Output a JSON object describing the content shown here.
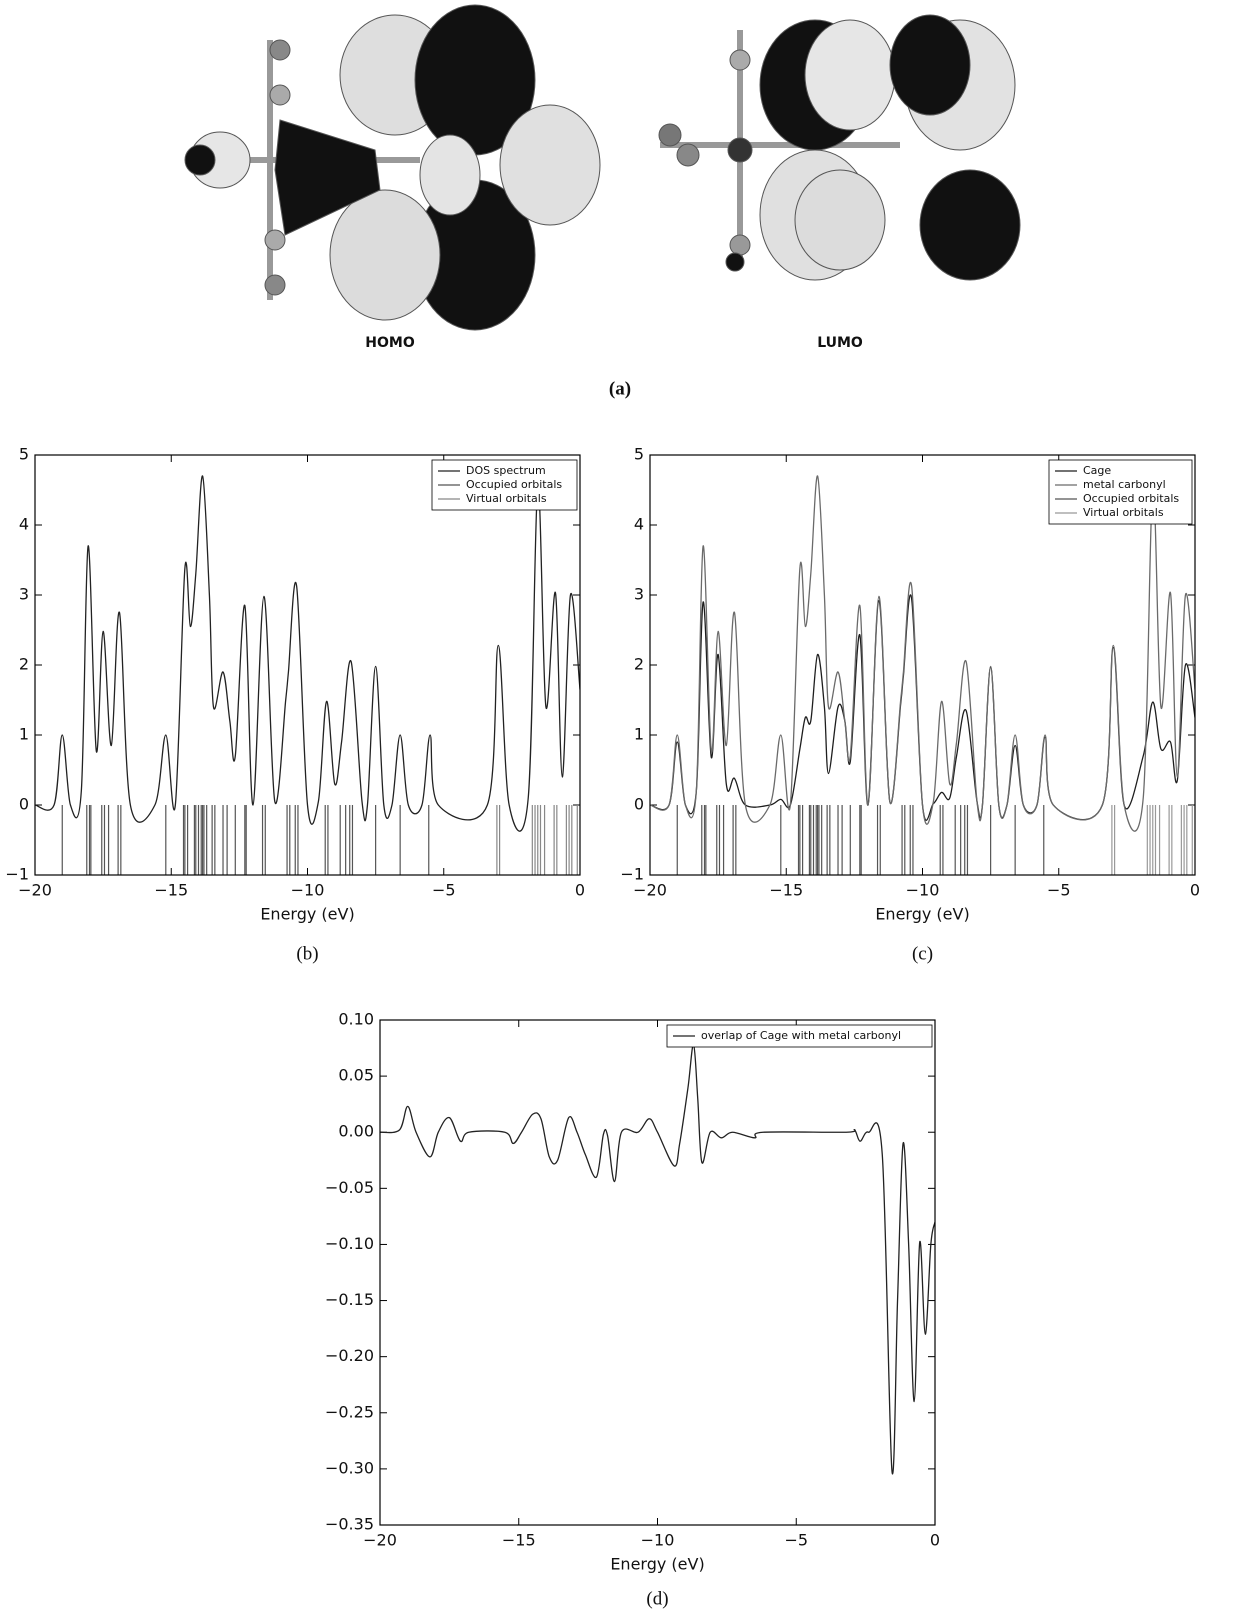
{
  "panel_a": {
    "homo_label": "HOMO",
    "lumo_label": "LUMO",
    "caption": "(a)"
  },
  "chart_data": [
    {
      "type": "line",
      "caption": "(b)",
      "x_label": "Energy (eV)",
      "legend": "upper right",
      "xlim": [
        -20,
        0
      ],
      "ylim": [
        -1,
        5
      ],
      "xticks": [
        {
          "value": -20,
          "label": "−20"
        },
        {
          "value": -15,
          "label": "−15"
        },
        {
          "value": -10,
          "label": "−10"
        },
        {
          "value": -5,
          "label": "−5"
        },
        0
      ],
      "yticks": [
        {
          "value": -1,
          "label": "−1"
        },
        0,
        1,
        2,
        3,
        4,
        5
      ],
      "series": [
        {
          "name": "DOS spectrum",
          "color": "#222222",
          "x": [
            -20,
            -19.3,
            -19.0,
            -18.7,
            -18.3,
            -18.05,
            -17.75,
            -17.5,
            -17.2,
            -16.9,
            -16.5,
            -15.6,
            -15.2,
            -14.85,
            -14.5,
            -14.3,
            -14.1,
            -13.85,
            -13.6,
            -13.45,
            -13.1,
            -12.85,
            -12.65,
            -12.3,
            -12.0,
            -11.6,
            -11.2,
            -10.8,
            -10.7,
            -10.4,
            -10.0,
            -9.6,
            -9.3,
            -9.0,
            -8.75,
            -8.4,
            -8.0,
            -7.8,
            -7.5,
            -7.2,
            -6.9,
            -6.6,
            -6.3,
            -5.8,
            -5.5,
            -5.2,
            -3.4,
            -3.0,
            -2.6,
            -1.9,
            -1.55,
            -1.25,
            -0.9,
            -0.65,
            -0.35,
            0
          ],
          "values": [
            0,
            0,
            1.0,
            0,
            0.2,
            3.7,
            0.77,
            2.48,
            0.85,
            2.75,
            0,
            0,
            1.0,
            0,
            3.38,
            2.55,
            3.3,
            4.7,
            3.0,
            1.4,
            1.9,
            1.2,
            0.7,
            2.85,
            0,
            2.98,
            0.05,
            1.5,
            1.9,
            3.13,
            0,
            0.05,
            1.48,
            0.3,
            0.9,
            2.05,
            0.05,
            0,
            1.98,
            0,
            0,
            1.0,
            0,
            0,
            1.0,
            0,
            0,
            2.28,
            0,
            0.1,
            4.55,
            1.4,
            3.03,
            0.4,
            3.0,
            1.65
          ]
        },
        {
          "name": "Occupied orbitals",
          "color": "#555555",
          "kind": "stick",
          "x": [
            -19.0,
            -18.1,
            -18.0,
            -17.95,
            -17.55,
            -17.45,
            -17.3,
            -16.95,
            -16.85,
            -15.2,
            -14.55,
            -14.5,
            -14.4,
            -14.15,
            -14.1,
            -14.0,
            -13.9,
            -13.85,
            -13.8,
            -13.7,
            -13.5,
            -13.4,
            -13.1,
            -12.95,
            -12.65,
            -12.3,
            -12.25,
            -11.65,
            -11.55,
            -10.75,
            -10.65,
            -10.45,
            -10.35,
            -9.35,
            -9.25,
            -8.8,
            -8.6,
            -8.45,
            -8.35,
            -7.5,
            -6.6,
            -5.55
          ]
        },
        {
          "name": "Virtual orbitals",
          "color": "#888888",
          "kind": "stick",
          "x": [
            -3.05,
            -2.95,
            -1.75,
            -1.65,
            -1.55,
            -1.45,
            -1.3,
            -0.95,
            -0.85,
            -0.5,
            -0.4,
            -0.3,
            -0.1
          ]
        }
      ]
    },
    {
      "type": "line",
      "caption": "(c)",
      "x_label": "Energy (eV)",
      "legend": "upper right",
      "xlim": [
        -20,
        0
      ],
      "ylim": [
        -1,
        5
      ],
      "xticks": [
        {
          "value": -20,
          "label": "−20"
        },
        {
          "value": -15,
          "label": "−15"
        },
        {
          "value": -10,
          "label": "−10"
        },
        {
          "value": -5,
          "label": "−5"
        },
        0
      ],
      "yticks": [
        {
          "value": -1,
          "label": "−1"
        },
        0,
        1,
        2,
        3,
        4,
        5
      ],
      "series": [
        {
          "name": "Cage",
          "color": "#1e1e1e",
          "x": [
            -20,
            -19.3,
            -19.0,
            -18.7,
            -18.3,
            -18.05,
            -17.75,
            -17.5,
            -17.2,
            -16.9,
            -16.5,
            -15.6,
            -15.2,
            -14.85,
            -14.5,
            -14.3,
            -14.1,
            -13.85,
            -13.6,
            -13.45,
            -13.1,
            -12.85,
            -12.65,
            -12.3,
            -12.0,
            -11.6,
            -11.2,
            -10.8,
            -10.7,
            -10.4,
            -10.0,
            -9.6,
            -9.3,
            -9.0,
            -8.75,
            -8.4,
            -8.0,
            -7.8,
            -7.5,
            -7.2,
            -6.9,
            -6.6,
            -6.3,
            -5.8,
            -5.5,
            -5.2,
            -3.4,
            -3.0,
            -2.6,
            -1.9,
            -1.55,
            -1.25,
            -0.9,
            -0.65,
            -0.35,
            0
          ],
          "values": [
            0,
            0,
            0.9,
            0,
            0.2,
            2.9,
            0.68,
            2.15,
            0.3,
            0.38,
            0,
            0,
            0.08,
            0,
            0.8,
            1.25,
            1.2,
            2.15,
            1.4,
            0.45,
            1.4,
            1.2,
            0.62,
            2.43,
            0,
            2.92,
            0.05,
            1.45,
            1.85,
            2.95,
            0,
            0.02,
            0.18,
            0.1,
            0.7,
            1.35,
            0.05,
            0,
            1.97,
            0,
            0,
            0.85,
            0,
            0,
            0.97,
            0,
            0,
            2.25,
            0,
            0.7,
            1.47,
            0.8,
            0.9,
            0.35,
            2.0,
            1.25
          ]
        },
        {
          "name": "metal carbonyl",
          "color": "#6a6a6a",
          "x": [
            -20,
            -19.3,
            -19.0,
            -18.7,
            -18.3,
            -18.05,
            -17.75,
            -17.5,
            -17.2,
            -16.9,
            -16.5,
            -15.6,
            -15.2,
            -14.85,
            -14.5,
            -14.3,
            -14.1,
            -13.85,
            -13.6,
            -13.45,
            -13.1,
            -12.85,
            -12.65,
            -12.3,
            -12.0,
            -11.6,
            -11.2,
            -10.8,
            -10.7,
            -10.4,
            -10.0,
            -9.6,
            -9.3,
            -9.0,
            -8.75,
            -8.4,
            -8.0,
            -7.8,
            -7.5,
            -7.2,
            -6.9,
            -6.6,
            -6.3,
            -5.8,
            -5.5,
            -5.2,
            -3.4,
            -3.0,
            -2.6,
            -1.9,
            -1.55,
            -1.25,
            -0.9,
            -0.65,
            -0.35,
            0
          ],
          "values": [
            0,
            0,
            1.0,
            0,
            0.2,
            3.7,
            0.77,
            2.48,
            0.85,
            2.75,
            0,
            0,
            1.0,
            0,
            3.38,
            2.55,
            3.3,
            4.7,
            3.0,
            1.4,
            1.9,
            1.2,
            0.7,
            2.85,
            0,
            2.98,
            0.05,
            1.5,
            1.9,
            3.13,
            0,
            0.05,
            1.48,
            0.3,
            0.9,
            2.05,
            0.05,
            0,
            1.98,
            0,
            0,
            1.0,
            0,
            0,
            1.0,
            0,
            0,
            2.28,
            0,
            0.1,
            4.55,
            1.4,
            3.03,
            0.4,
            3.0,
            1.65
          ]
        },
        {
          "name": "Occupied orbitals",
          "color": "#555555",
          "kind": "stick",
          "x": [
            -19.0,
            -18.1,
            -18.0,
            -17.95,
            -17.55,
            -17.45,
            -17.3,
            -16.95,
            -16.85,
            -15.2,
            -14.55,
            -14.5,
            -14.4,
            -14.15,
            -14.1,
            -14.0,
            -13.9,
            -13.85,
            -13.8,
            -13.7,
            -13.5,
            -13.4,
            -13.1,
            -12.95,
            -12.65,
            -12.3,
            -12.25,
            -11.65,
            -11.55,
            -10.75,
            -10.65,
            -10.45,
            -10.35,
            -9.35,
            -9.25,
            -8.8,
            -8.6,
            -8.45,
            -8.35,
            -7.5,
            -6.6,
            -5.55
          ]
        },
        {
          "name": "Virtual orbitals",
          "color": "#999999",
          "kind": "stick",
          "x": [
            -3.05,
            -2.95,
            -1.75,
            -1.65,
            -1.55,
            -1.45,
            -1.3,
            -0.95,
            -0.85,
            -0.5,
            -0.4,
            -0.3,
            -0.1
          ]
        }
      ]
    },
    {
      "type": "line",
      "caption": "(d)",
      "x_label": "Energy (eV)",
      "legend": "upper right",
      "xlim": [
        -20,
        0
      ],
      "ylim": [
        -0.35,
        0.1
      ],
      "xticks": [
        {
          "value": -20,
          "label": "−20"
        },
        {
          "value": -15,
          "label": "−15"
        },
        {
          "value": -10,
          "label": "−10"
        },
        {
          "value": -5,
          "label": "−5"
        },
        0
      ],
      "yticks": [
        {
          "value": -0.35,
          "label": "−0.35"
        },
        {
          "value": -0.3,
          "label": "−0.30"
        },
        {
          "value": -0.25,
          "label": "−0.25"
        },
        {
          "value": -0.2,
          "label": "−0.20"
        },
        {
          "value": -0.15,
          "label": "−0.15"
        },
        {
          "value": -0.1,
          "label": "−0.10"
        },
        {
          "value": -0.05,
          "label": "−0.05"
        },
        {
          "value": 0,
          "label": "0.00"
        },
        {
          "value": 0.05,
          "label": "0.05"
        },
        {
          "value": 0.1,
          "label": "0.10"
        }
      ],
      "series": [
        {
          "name": "overlap of Cage with metal carbonyl",
          "color": "#222222",
          "x": [
            -20,
            -19.3,
            -19.0,
            -18.7,
            -18.2,
            -17.9,
            -17.5,
            -17.1,
            -16.8,
            -15.5,
            -15.2,
            -14.9,
            -14.5,
            -14.2,
            -13.9,
            -13.6,
            -13.2,
            -12.9,
            -12.6,
            -12.2,
            -11.95,
            -11.8,
            -11.55,
            -11.3,
            -10.7,
            -10.3,
            -10.0,
            -9.4,
            -9.2,
            -8.9,
            -8.7,
            -8.55,
            -8.4,
            -8.1,
            -7.7,
            -7.3,
            -6.5,
            -6.2,
            -3.2,
            -2.9,
            -2.7,
            -2.4,
            -1.9,
            -1.55,
            -1.35,
            -1.15,
            -0.95,
            -0.75,
            -0.55,
            -0.35,
            -0.15,
            0
          ],
          "values": [
            0,
            0.002,
            0.023,
            0,
            -0.022,
            0,
            0.013,
            -0.008,
            0,
            0,
            -0.01,
            0,
            0.016,
            0.012,
            -0.022,
            -0.025,
            0.013,
            0,
            -0.02,
            -0.04,
            -0.002,
            -0.003,
            -0.044,
            0,
            0,
            0.012,
            0,
            -0.03,
            -0.01,
            0.04,
            0.078,
            0.03,
            -0.027,
            0,
            -0.005,
            0,
            -0.005,
            0,
            0,
            0.002,
            -0.008,
            0,
            -0.02,
            -0.302,
            -0.15,
            -0.01,
            -0.1,
            -0.24,
            -0.098,
            -0.18,
            -0.1,
            -0.08
          ]
        }
      ]
    }
  ]
}
